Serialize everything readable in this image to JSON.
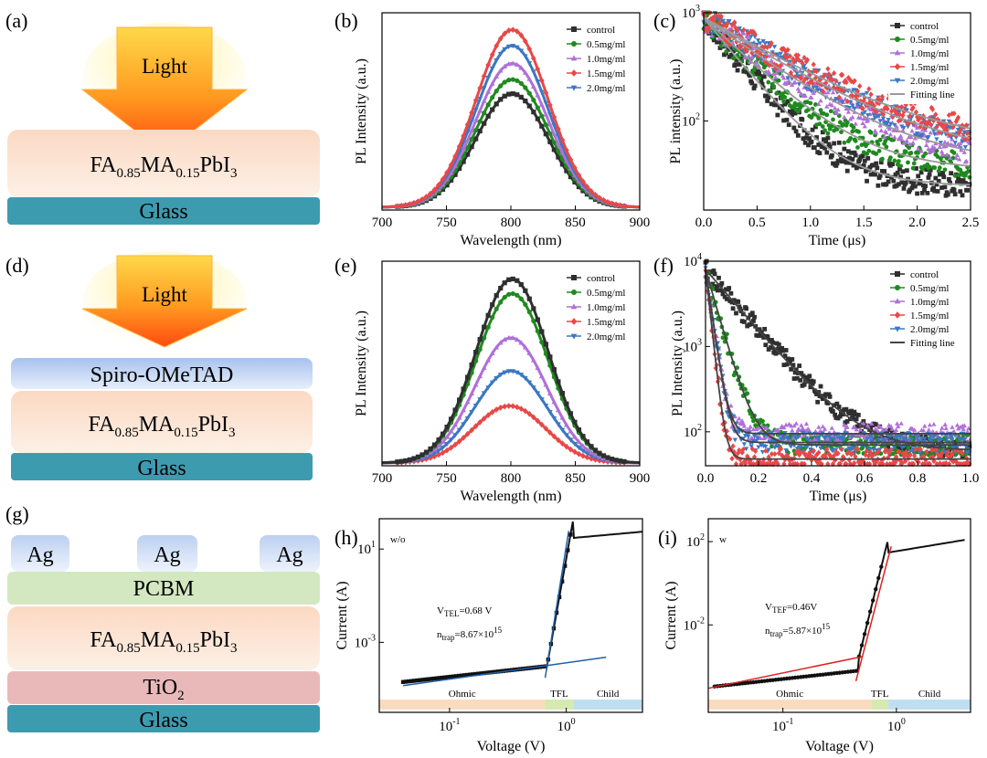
{
  "panel_labels": [
    "(a)",
    "(b)",
    "(c)",
    "(d)",
    "(e)",
    "(f)",
    "(g)",
    "(h)",
    "(i)"
  ],
  "schematics": {
    "a": {
      "arrow": "Light",
      "perovskite": "FA0.85MA0.15PbI3",
      "substrate": "Glass"
    },
    "d": {
      "arrow": "Light",
      "htl": "Spiro-OMeTAD",
      "perovskite": "FA0.85MA0.15PbI3",
      "substrate": "Glass"
    },
    "g": {
      "electrode": "Ag",
      "etl_top": "PCBM",
      "perovskite": "FA0.85MA0.15PbI3",
      "etl_bottom": "TiO2",
      "substrate": "Glass"
    }
  },
  "perovskite_parts": {
    "a": "FA",
    "b": "0.85",
    "c": "MA",
    "d": "0.15",
    "e": "PbI",
    "f": "3"
  },
  "tio2_parts": {
    "a": "TiO",
    "b": "2"
  },
  "colors": {
    "control": "#2f2f2f",
    "c05": "#1f8a1f",
    "c10": "#b070d8",
    "c15": "#e84848",
    "c20": "#3a78c2",
    "fit_c": "#9a9a9a",
    "fit_f": "#444444",
    "fit_h": "#1f5fa8",
    "fit_i": "#e02020",
    "ohmic": "#f8d8b8",
    "tfl": "#cfe8a8",
    "child": "#b8dcee",
    "glass": "#3d9bb0",
    "perovskite": "#fbe0cc",
    "spiro": "#b9cff0",
    "pcbm": "#d3e8c0",
    "tio2": "#e9b9b9",
    "ag": "#cfdcf4"
  },
  "chart_data": [
    {
      "panel": "(b)",
      "type": "line",
      "xlabel": "Wavelength (nm)",
      "ylabel": "PL Intensity (a.u.)",
      "xlim": [
        700,
        900
      ],
      "xticks": [
        "700",
        "750",
        "800",
        "850",
        "900"
      ],
      "series": [
        {
          "name": "control",
          "peak_nm": 801,
          "peak": 0.64
        },
        {
          "name": "0.5mg/ml",
          "peak_nm": 801,
          "peak": 0.72
        },
        {
          "name": "1.0mg/ml",
          "peak_nm": 801,
          "peak": 0.81
        },
        {
          "name": "1.5mg/ml",
          "peak_nm": 801,
          "peak": 1.0
        },
        {
          "name": "2.0mg/ml",
          "peak_nm": 801,
          "peak": 0.91
        }
      ]
    },
    {
      "panel": "(c)",
      "type": "line",
      "yscale": "log",
      "xlabel": "Time (μs)",
      "ylabel": "PL intensity (a.u.)",
      "xlim": [
        0,
        2.5
      ],
      "xticks": [
        "0.0",
        "0.5",
        "1.0",
        "1.5",
        "2.0",
        "2.5"
      ],
      "ylim": [
        15,
        1000
      ],
      "series": [
        {
          "name": "control",
          "start": 900,
          "floor": 25,
          "tau": 0.35
        },
        {
          "name": "0.5mg/ml",
          "start": 900,
          "floor": 35,
          "tau": 0.45
        },
        {
          "name": "1.0mg/ml",
          "start": 900,
          "floor": 40,
          "tau": 0.6
        },
        {
          "name": "1.5mg/ml",
          "start": 900,
          "floor": 55,
          "tau": 0.75
        },
        {
          "name": "2.0mg/ml",
          "start": 900,
          "floor": 45,
          "tau": 0.7
        },
        {
          "name": "Fitting line"
        }
      ]
    },
    {
      "panel": "(e)",
      "type": "line",
      "xlabel": "Wavelength (nm)",
      "ylabel": "PL Intensity (a.u.)",
      "xlim": [
        700,
        900
      ],
      "xticks": [
        "700",
        "750",
        "800",
        "850",
        "900"
      ],
      "series": [
        {
          "name": "control",
          "peak_nm": 801,
          "peak": 1.0
        },
        {
          "name": "0.5mg/ml",
          "peak_nm": 801,
          "peak": 0.92
        },
        {
          "name": "1.0mg/ml",
          "peak_nm": 800,
          "peak": 0.68
        },
        {
          "name": "1.5mg/ml",
          "peak_nm": 799,
          "peak": 0.31
        },
        {
          "name": "2.0mg/ml",
          "peak_nm": 800,
          "peak": 0.5
        }
      ]
    },
    {
      "panel": "(f)",
      "type": "line",
      "yscale": "log",
      "xlabel": "Time (μs)",
      "ylabel": "PL Intensity (a.u.)",
      "xlim": [
        0,
        1.0
      ],
      "xticks": [
        "0.0",
        "0.2",
        "0.4",
        "0.6",
        "0.8",
        "1.0"
      ],
      "ylim": [
        40,
        10000
      ],
      "series": [
        {
          "name": "control",
          "start": 8000,
          "floor": 60,
          "tau": 0.12
        },
        {
          "name": "0.5mg/ml",
          "start": 8000,
          "floor": 70,
          "tau": 0.04
        },
        {
          "name": "1.0mg/ml",
          "start": 8000,
          "floor": 95,
          "tau": 0.02
        },
        {
          "name": "1.5mg/ml",
          "start": 8000,
          "floor": 48,
          "tau": 0.015
        },
        {
          "name": "2.0mg/ml",
          "start": 8000,
          "floor": 75,
          "tau": 0.02
        },
        {
          "name": "Fitting line"
        }
      ]
    },
    {
      "panel": "(h)",
      "type": "scatter",
      "xscale": "log",
      "yscale": "log",
      "xlabel": "Voltage (V)",
      "ylabel": "Current (A)",
      "annotation_tag": "w/o",
      "vtfl": {
        "sym": "V",
        "sub": "TEL",
        "val": "=0.68 V"
      },
      "ntrap": {
        "sym": "n",
        "sub": "trap",
        "val": "=8.67×10",
        "exp": "15"
      },
      "regions": [
        "Ohmic",
        "TFL",
        "Child"
      ],
      "yticks": [
        {
          "base": "10",
          "exp": "1",
          "v": 10
        },
        {
          "base": "10",
          "exp": "-3",
          "v": 0.001
        }
      ],
      "xticks": [
        {
          "base": "10",
          "exp": "-1",
          "v": 0.1
        },
        {
          "base": "10",
          "exp": "0",
          "v": 1
        }
      ]
    },
    {
      "panel": "(i)",
      "type": "scatter",
      "xscale": "log",
      "yscale": "log",
      "xlabel": "Voltage (V)",
      "ylabel": "Current (A)",
      "annotation_tag": "w",
      "vtfl": {
        "sym": "V",
        "sub": "TEF",
        "val": "=0.46V"
      },
      "ntrap": {
        "sym": "n",
        "sub": "trap",
        "val": "=5.87×10",
        "exp": "15"
      },
      "regions": [
        "Ohmic",
        "TFL",
        "Child"
      ],
      "yticks": [
        {
          "base": "10",
          "exp": "2",
          "v": 100
        },
        {
          "base": "10",
          "exp": "-2",
          "v": 0.01
        }
      ],
      "xticks": [
        {
          "base": "10",
          "exp": "-1",
          "v": 0.1
        },
        {
          "base": "10",
          "exp": "0",
          "v": 1
        }
      ]
    }
  ]
}
